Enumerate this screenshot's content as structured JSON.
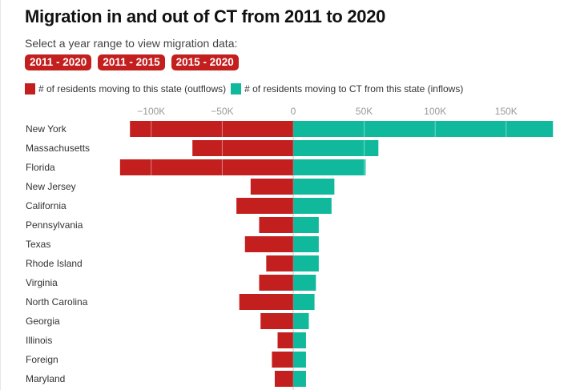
{
  "header": {
    "title": "Migration in and out of CT from 2011 to 2020",
    "subtitle": "Select a year range to view migration data:",
    "buttons": [
      "2011 - 2020",
      "2011 - 2015",
      "2015 - 2020"
    ]
  },
  "colors": {
    "outflow": "#c41f1f",
    "inflow": "#10b99c",
    "button": "#c41f1f"
  },
  "chart_data": {
    "type": "bar",
    "orientation": "horizontal-diverging",
    "title": "Migration in and out of CT from 2011 to 2020",
    "xlabel": "",
    "ylabel": "",
    "xlim": [
      -125000,
      185000
    ],
    "ticks": [
      -100000,
      -50000,
      0,
      50000,
      100000,
      150000
    ],
    "tick_labels": [
      "−100K",
      "−50K",
      "0",
      "50K",
      "100K",
      "150K"
    ],
    "grid": true,
    "legend": "top-left",
    "categories": [
      "New York",
      "Massachusetts",
      "Florida",
      "New Jersey",
      "California",
      "Pennsylvania",
      "Texas",
      "Rhode Island",
      "Virginia",
      "North Carolina",
      "Georgia",
      "Illinois",
      "Foreign",
      "Maryland"
    ],
    "series": [
      {
        "name": "# of residents moving to this state (outflows)",
        "color": "#c41f1f",
        "values": [
          -115000,
          -71000,
          -122000,
          -30000,
          -40000,
          -24000,
          -34000,
          -19000,
          -24000,
          -38000,
          -23000,
          -11000,
          -15000,
          -13000
        ]
      },
      {
        "name": "# of residents moving to CT from this state (inflows)",
        "color": "#10b99c",
        "values": [
          183000,
          60000,
          51000,
          29000,
          27000,
          18000,
          18000,
          18000,
          16000,
          15000,
          11000,
          9000,
          9000,
          9000
        ]
      }
    ]
  }
}
